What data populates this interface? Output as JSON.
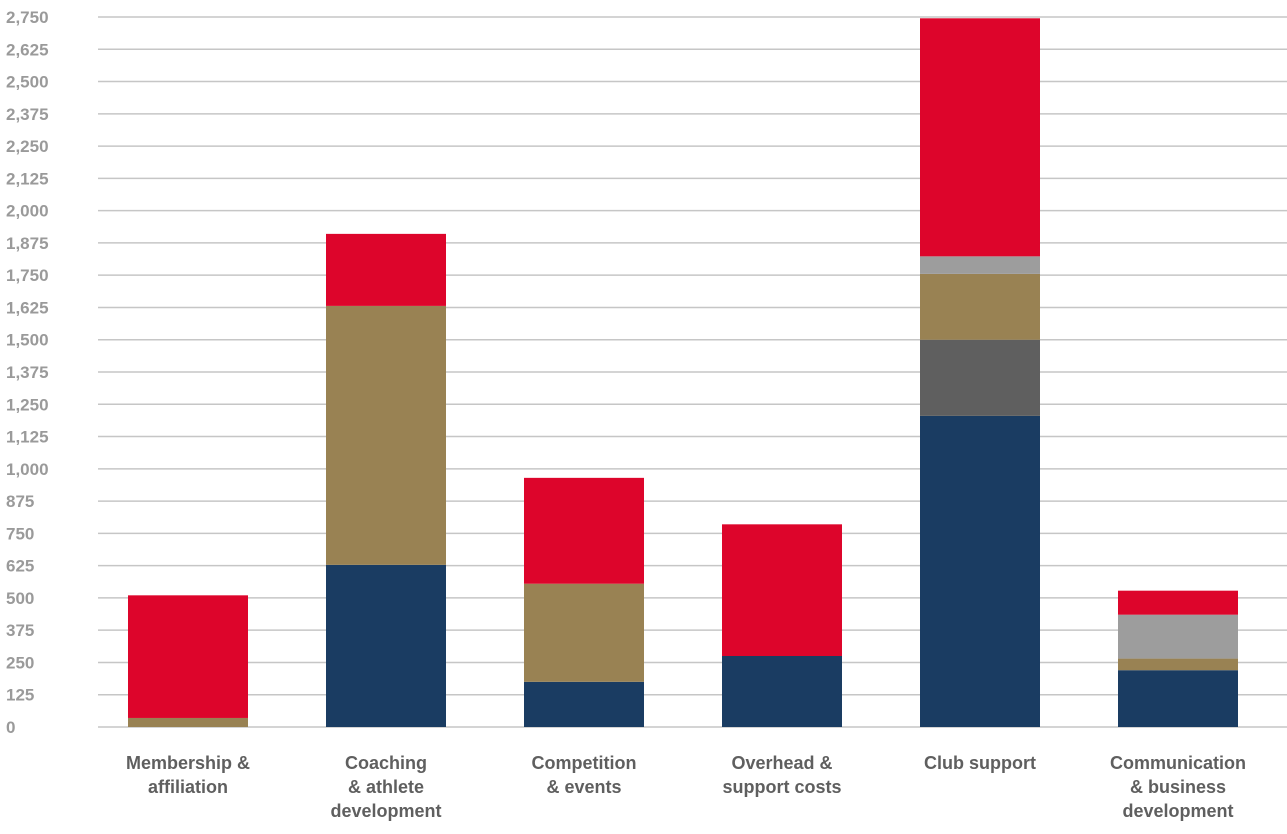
{
  "chart_data": {
    "type": "bar",
    "stacked": true,
    "title": "",
    "xlabel": "",
    "ylabel": "",
    "ylim": [
      0,
      2750
    ],
    "grid": true,
    "y_ticks": [
      "0",
      "125",
      "250",
      "375",
      "500",
      "625",
      "750",
      "875",
      "1,000",
      "1,125",
      "1,250",
      "1,375",
      "1,500",
      "1,625",
      "1,750",
      "1,875",
      "2,000",
      "2,125",
      "2,250",
      "2,375",
      "2,500",
      "2,625",
      "2,750"
    ],
    "y_tick_values": [
      0,
      125,
      250,
      375,
      500,
      625,
      750,
      875,
      1000,
      1125,
      1250,
      1375,
      1500,
      1625,
      1750,
      1875,
      2000,
      2125,
      2250,
      2375,
      2500,
      2625,
      2750
    ],
    "categories": [
      [
        "Membership &",
        "affiliation"
      ],
      [
        "Coaching",
        "& athlete",
        "development"
      ],
      [
        "Competition",
        "& events"
      ],
      [
        "Overhead &",
        "support costs"
      ],
      [
        "Club support"
      ],
      [
        "Communication",
        "& business",
        "development"
      ]
    ],
    "series": [
      {
        "color": "#1a3c62",
        "values": [
          0,
          628,
          175,
          275,
          1205,
          220
        ]
      },
      {
        "color": "#5f5f5f",
        "values": [
          0,
          0,
          0,
          0,
          295,
          0
        ]
      },
      {
        "color": "#998253",
        "values": [
          35,
          1003,
          380,
          0,
          255,
          45
        ]
      },
      {
        "color": "#9d9d9d",
        "values": [
          0,
          0,
          0,
          0,
          68,
          170
        ]
      },
      {
        "color": "#dd052b",
        "values": [
          475,
          279,
          410,
          510,
          922,
          93
        ]
      }
    ]
  }
}
